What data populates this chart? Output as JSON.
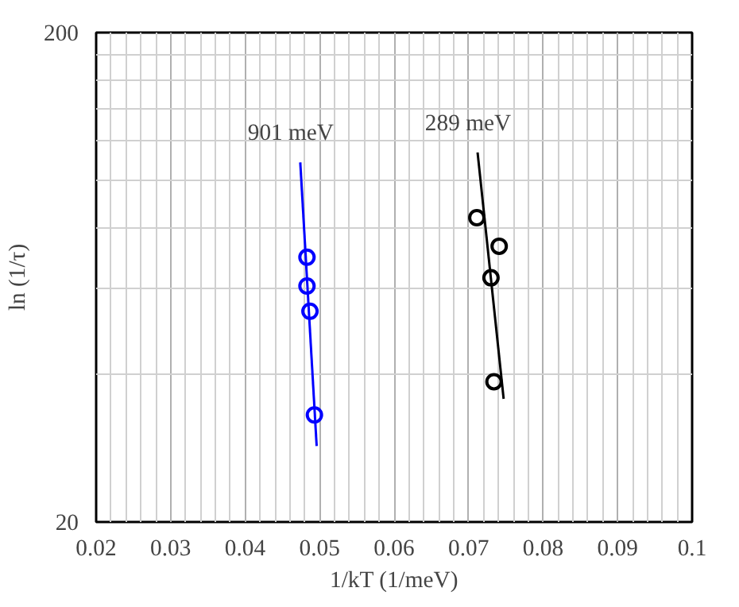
{
  "chart_data": {
    "type": "scatter",
    "xlabel": "1/kT (1/meV)",
    "ylabel": "ln (1/τ)",
    "log": "y",
    "xlim": [
      0.02,
      0.1
    ],
    "ylim": [
      20,
      200
    ],
    "xticks": [
      0.02,
      {
        "value": 0.022,
        "label": null
      },
      {
        "value": 0.024,
        "label": null
      },
      {
        "value": 0.026,
        "label": null
      },
      {
        "value": 0.028,
        "label": null
      },
      0.03,
      {
        "value": 0.032,
        "label": null
      },
      {
        "value": 0.034,
        "label": null
      },
      {
        "value": 0.036,
        "label": null
      },
      {
        "value": 0.038,
        "label": null
      },
      0.04,
      {
        "value": 0.042,
        "label": null
      },
      {
        "value": 0.044,
        "label": null
      },
      {
        "value": 0.046,
        "label": null
      },
      {
        "value": 0.048,
        "label": null
      },
      0.05,
      {
        "value": 0.052,
        "label": null
      },
      {
        "value": 0.054,
        "label": null
      },
      {
        "value": 0.056,
        "label": null
      },
      {
        "value": 0.058,
        "label": null
      },
      0.06,
      {
        "value": 0.062,
        "label": null
      },
      {
        "value": 0.064,
        "label": null
      },
      {
        "value": 0.066,
        "label": null
      },
      {
        "value": 0.068,
        "label": null
      },
      0.07,
      {
        "value": 0.072,
        "label": null
      },
      {
        "value": 0.074,
        "label": null
      },
      {
        "value": 0.076,
        "label": null
      },
      {
        "value": 0.078,
        "label": null
      },
      0.08,
      {
        "value": 0.082,
        "label": null
      },
      {
        "value": 0.084,
        "label": null
      },
      {
        "value": 0.086,
        "label": null
      },
      {
        "value": 0.088,
        "label": null
      },
      0.09,
      {
        "value": 0.092,
        "label": null
      },
      {
        "value": 0.094,
        "label": null
      },
      {
        "value": 0.096,
        "label": null
      },
      {
        "value": 0.098,
        "label": null
      },
      0.1
    ],
    "yticks": [
      20,
      {
        "value": 40,
        "label": null
      },
      {
        "value": 60,
        "label": null
      },
      {
        "value": 80,
        "label": null
      },
      {
        "value": 100,
        "label": null
      },
      {
        "value": 120,
        "label": null
      },
      {
        "value": 140,
        "label": null
      },
      {
        "value": 160,
        "label": null
      },
      {
        "value": 180,
        "label": null
      },
      200
    ],
    "grid": true,
    "marker": "circle",
    "series": [
      {
        "color": "#0000ff",
        "x": [
          0.0483,
          0.0483,
          0.0487,
          0.0493
        ],
        "values": [
          69.5,
          60.7,
          53.9,
          33.1
        ]
      },
      {
        "type": "line",
        "name": "901 meV",
        "color": "#0000ff",
        "marker": "none",
        "x": [
          0.0474,
          0.0496
        ],
        "values": [
          108.6,
          28.6
        ]
      },
      {
        "color": "#000000",
        "x": [
          0.0711,
          0.0741,
          0.073,
          0.0734
        ],
        "values": [
          83.7,
          73.2,
          63.1,
          38.7
        ]
      },
      {
        "type": "line",
        "name": "289 meV",
        "color": "#000000",
        "marker": "none",
        "x": [
          0.0712,
          0.0747
        ],
        "values": [
          113.8,
          35.7
        ]
      }
    ]
  }
}
